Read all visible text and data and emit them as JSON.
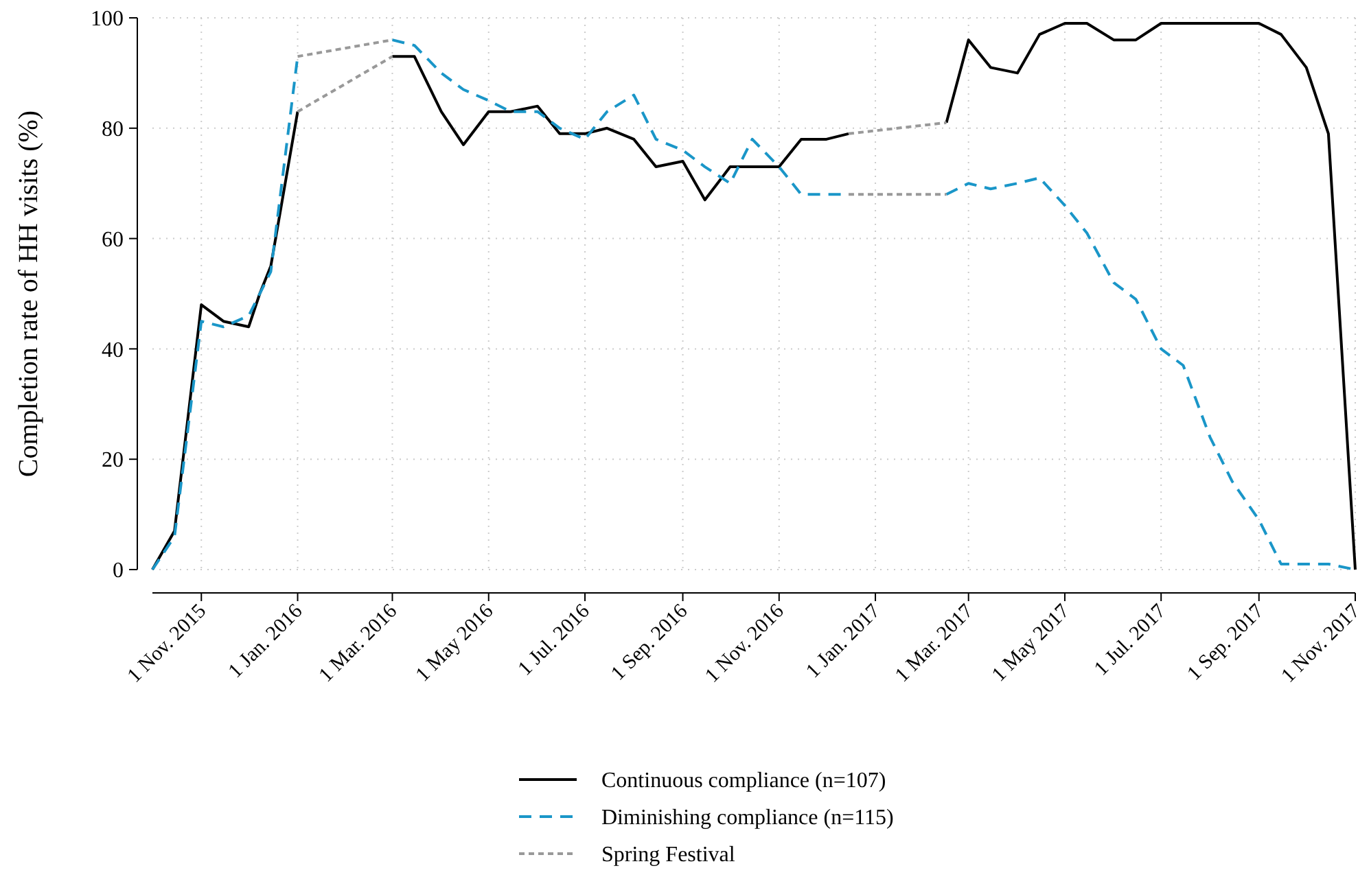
{
  "chart_data": {
    "type": "line",
    "ylabel": "Completion rate of HH visits (%)",
    "xlim": [
      "2015-10-01",
      "2017-11-01"
    ],
    "xticks": [
      {
        "value": "2015-11-01",
        "label": "1 Nov. 2015"
      },
      {
        "value": "2016-01-01",
        "label": "1 Jan. 2016"
      },
      {
        "value": "2016-03-01",
        "label": "1 Mar. 2016"
      },
      {
        "value": "2016-05-01",
        "label": "1 May 2016"
      },
      {
        "value": "2016-07-01",
        "label": "1 Jul. 2016"
      },
      {
        "value": "2016-09-01",
        "label": "1 Sep. 2016"
      },
      {
        "value": "2016-11-01",
        "label": "1 Nov. 2016"
      },
      {
        "value": "2017-01-01",
        "label": "1 Jan. 2017"
      },
      {
        "value": "2017-03-01",
        "label": "1 Mar. 2017"
      },
      {
        "value": "2017-05-01",
        "label": "1 May 2017"
      },
      {
        "value": "2017-07-01",
        "label": "1 Jul. 2017"
      },
      {
        "value": "2017-09-01",
        "label": "1 Sep. 2017"
      },
      {
        "value": "2017-11-01",
        "label": "1 Nov. 2017"
      }
    ],
    "ylim": [
      0,
      100
    ],
    "yticks": [
      0,
      20,
      40,
      60,
      80,
      100
    ],
    "grid": true,
    "legend": "bottom",
    "series": [
      {
        "name": "Continuous compliance (n=107)",
        "color": "#000000",
        "line_style": "solid",
        "x": [
          "2015-10-01",
          "2015-10-15",
          "2015-11-01",
          "2015-11-15",
          "2015-12-01",
          "2015-12-08",
          "2015-12-15",
          "2016-01-01",
          "2016-02-01",
          "2016-03-01",
          "2016-03-15",
          "2016-04-01",
          "2016-04-15",
          "2016-05-01",
          "2016-05-15",
          "2016-06-01",
          "2016-06-15",
          "2016-07-01",
          "2016-07-15",
          "2016-08-01",
          "2016-08-15",
          "2016-09-01",
          "2016-09-15",
          "2016-10-01",
          "2016-10-15",
          "2016-11-01",
          "2016-11-15",
          "2016-12-01",
          "2016-12-15",
          "2017-01-15",
          "2017-02-15",
          "2017-03-01",
          "2017-03-15",
          "2017-04-01",
          "2017-04-15",
          "2017-05-01",
          "2017-05-15",
          "2017-06-01",
          "2017-06-15",
          "2017-07-01",
          "2017-07-15",
          "2017-08-01",
          "2017-08-15",
          "2017-09-01",
          "2017-09-15",
          "2017-10-01",
          "2017-10-15",
          "2017-11-01"
        ],
        "values": [
          0,
          7,
          48,
          45,
          44,
          50,
          55,
          83,
          null,
          93,
          93,
          83,
          77,
          83,
          83,
          84,
          79,
          79,
          80,
          78,
          73,
          74,
          67,
          73,
          73,
          73,
          78,
          78,
          79,
          null,
          81,
          96,
          91,
          90,
          97,
          99,
          99,
          96,
          96,
          99,
          99,
          99,
          99,
          99,
          97,
          91,
          79,
          0
        ]
      },
      {
        "name": "Diminishing compliance (n=115)",
        "color": "#1a96c8",
        "line_style": "dashed",
        "x": [
          "2015-10-01",
          "2015-10-15",
          "2015-11-01",
          "2015-11-15",
          "2015-12-01",
          "2015-12-15",
          "2016-01-01",
          "2016-02-01",
          "2016-03-01",
          "2016-03-15",
          "2016-04-01",
          "2016-04-15",
          "2016-05-01",
          "2016-05-15",
          "2016-06-01",
          "2016-06-15",
          "2016-07-01",
          "2016-07-15",
          "2016-08-01",
          "2016-08-15",
          "2016-09-01",
          "2016-09-15",
          "2016-10-01",
          "2016-10-15",
          "2016-11-01",
          "2016-11-15",
          "2016-12-01",
          "2016-12-15",
          "2017-01-15",
          "2017-02-15",
          "2017-03-01",
          "2017-03-15",
          "2017-04-01",
          "2017-04-15",
          "2017-05-01",
          "2017-05-15",
          "2017-06-01",
          "2017-06-15",
          "2017-07-01",
          "2017-07-15",
          "2017-08-01",
          "2017-08-15",
          "2017-09-01",
          "2017-09-15",
          "2017-10-01",
          "2017-10-15",
          "2017-11-01"
        ],
        "values": [
          0,
          6,
          45,
          44,
          46,
          54,
          93,
          null,
          96,
          95,
          90,
          87,
          85,
          83,
          83,
          80,
          78,
          83,
          86,
          78,
          76,
          73,
          70,
          78,
          73,
          68,
          68,
          68,
          null,
          68,
          70,
          69,
          70,
          71,
          66,
          61,
          52,
          49,
          40,
          37,
          24,
          16,
          9,
          1,
          1,
          1,
          0
        ]
      },
      {
        "name": "Spring Festival",
        "color": "#999999",
        "line_style": "dotted",
        "x": [
          "2016-01-01",
          "2016-03-01",
          "2016-08-01",
          "2016-12-15",
          "2017-02-15"
        ],
        "values": [
          83,
          93,
          null,
          79,
          81
        ]
      },
      {
        "color": "#999999",
        "line_style": "dotted",
        "x": [
          "2016-01-01",
          "2016-03-01",
          "2016-08-01",
          "2016-12-15",
          "2017-02-15"
        ],
        "values": [
          93,
          96,
          null,
          68,
          68
        ]
      }
    ]
  }
}
